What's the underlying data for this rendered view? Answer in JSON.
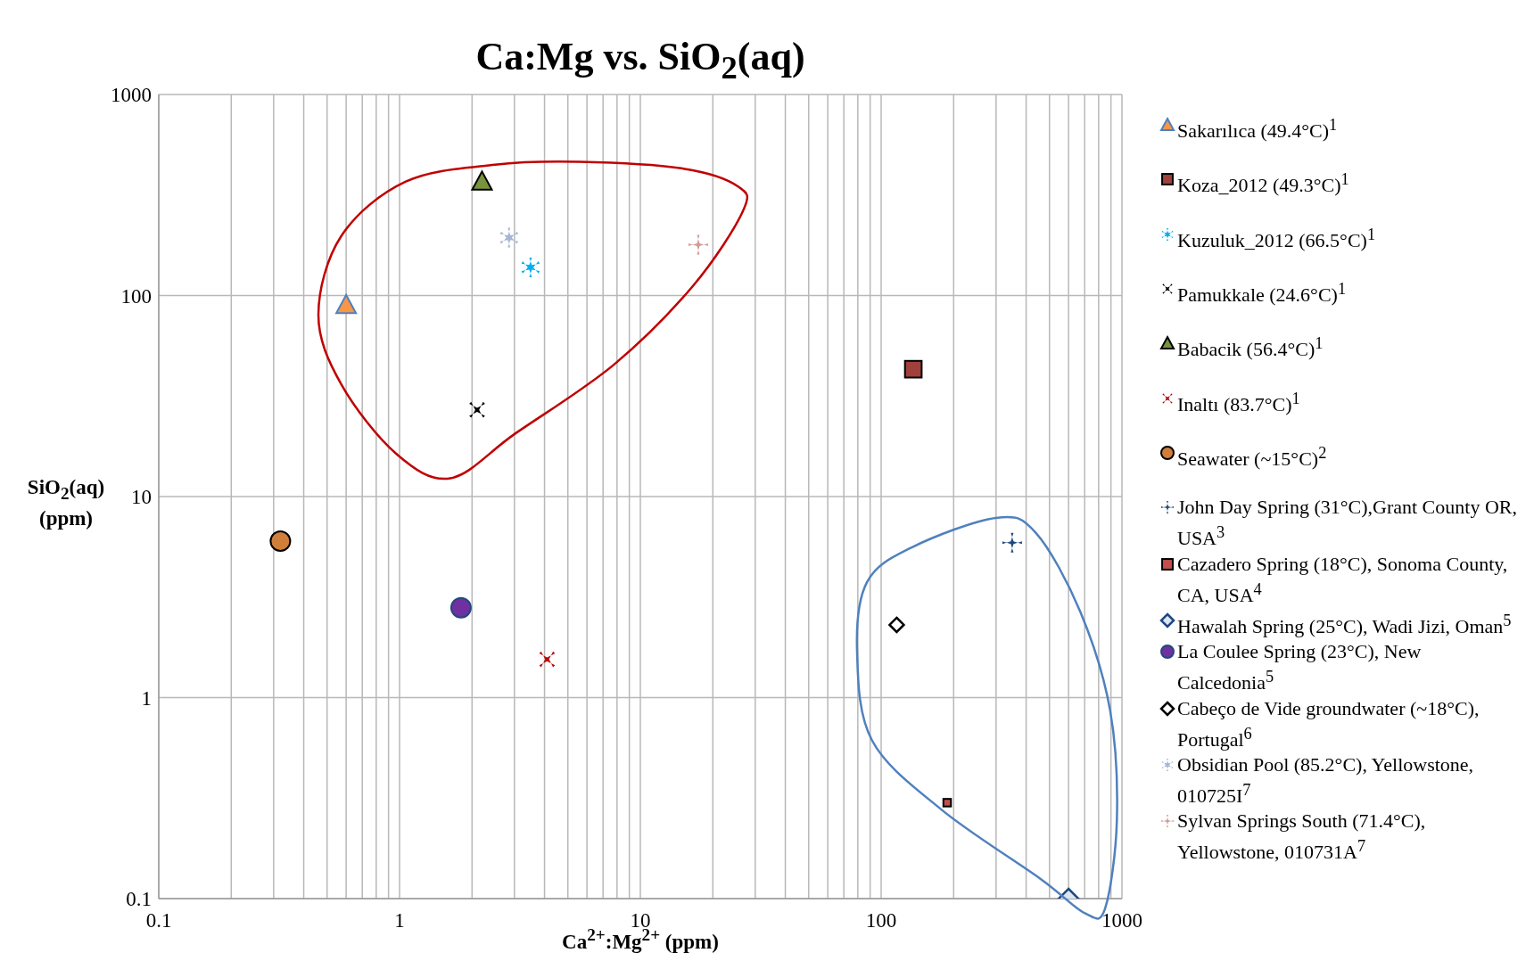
{
  "chart_data": {
    "type": "scatter",
    "title": "Ca:Mg vs. SiO$_{2}$(aq)",
    "xlabel": "Ca$^{2+}$:Mg$^{2+}$ (ppm)",
    "ylabel": "SiO$_{2}$(aq) (ppm)",
    "log": "xy",
    "xlim": [
      0.1,
      1000
    ],
    "xticks": [
      0.1,
      1,
      10,
      100,
      1000
    ],
    "ylim": [
      0.1,
      1000
    ],
    "yticks": [
      0.1,
      1,
      10,
      100,
      1000
    ],
    "grid": true,
    "legend": "right",
    "series": [
      {
        "name": "Sakarılıca (49.4°C)$^{1}$",
        "color": "#f79646",
        "marker": "triangle",
        "x": [
          0.6
        ],
        "values": [
          90
        ]
      },
      {
        "name": "Koza_2012 (49.3°C)$^{1}$",
        "color": "#a0403c",
        "marker": "square",
        "x": [
          136
        ],
        "values": [
          43
        ]
      },
      {
        "name": "Kuzuluk_2012 (66.5°C)$^{1}$",
        "color": "#00b0f0",
        "marker": "star",
        "x": [
          3.5
        ],
        "values": [
          138
        ]
      },
      {
        "name": "Pamukkale (24.6°C)$^{1}$",
        "color": "#000000",
        "marker": "x",
        "x": [
          2.1
        ],
        "values": [
          27
        ]
      },
      {
        "name": "Babacik (56.4°C)$^{1}$",
        "color": "#77933c",
        "marker": "triangle",
        "x": [
          2.2
        ],
        "values": [
          370
        ]
      },
      {
        "name": "Inaltı (83.7°C)$^{1}$",
        "color": "#c00000",
        "marker": "x",
        "x": [
          4.1
        ],
        "values": [
          1.55
        ]
      },
      {
        "name": "Seawater (~15°C)$^{2}$",
        "color": "#d07f3b",
        "marker": "circle",
        "x": [
          0.32
        ],
        "values": [
          6
        ]
      },
      {
        "name": "John Day Spring (31°C),Grant County OR, USA$^{3}$",
        "color": "#1f497d",
        "marker": "cross",
        "x": [
          350
        ],
        "values": [
          5.9
        ]
      },
      {
        "name": "Cazadero Spring (18°C), Sonoma County, CA, USA$^{4}$",
        "color": "#c0504d",
        "marker": "square",
        "x": [
          188
        ],
        "values": [
          0.3
        ]
      },
      {
        "name": "Hawalah Spring (25°C), Wadi Jizi, Oman$^{5}$",
        "color": "#1f497d",
        "marker": "diamond",
        "x": [
          600
        ],
        "values": [
          0.1
        ]
      },
      {
        "name": "La Coulee Spring (23°C), New Calcedonia$^{5}$",
        "color": "#7030a0",
        "marker": "circle",
        "x": [
          1.8
        ],
        "values": [
          2.8
        ]
      },
      {
        "name": "Cabeço de Vide groundwater (~18°C), Portugal$^{6}$",
        "color": "#000000",
        "marker": "diamond",
        "x": [
          116
        ],
        "values": [
          2.3
        ]
      },
      {
        "name": "Obsidian Pool (85.2°C), Yellowstone, 010725I$^{7}$",
        "color": "#a6b6d6",
        "marker": "star",
        "x": [
          2.85
        ],
        "values": [
          194
        ]
      },
      {
        "name": "Sylvan Springs South (71.4°C), Yellowstone, 010731A$^{7}$",
        "color": "#d09c98",
        "marker": "cross",
        "x": [
          17.4
        ],
        "values": [
          179
        ]
      }
    ]
  }
}
